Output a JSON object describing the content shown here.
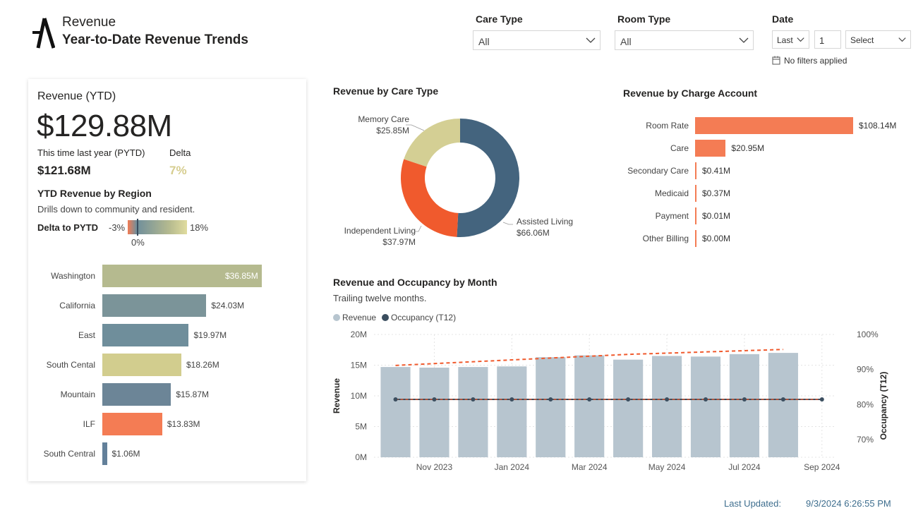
{
  "header": {
    "app_name": "Revenue",
    "page_title": "Year-to-Date Revenue Trends"
  },
  "filters": {
    "care_type": {
      "label": "Care Type",
      "value": "All"
    },
    "room_type": {
      "label": "Room Type",
      "value": "All"
    },
    "date": {
      "label": "Date",
      "period": "Last",
      "count": "1",
      "unit": "Select",
      "status": "No filters applied"
    }
  },
  "kpi": {
    "title": "Revenue (YTD)",
    "value": "$129.88M",
    "pytd_label": "This time last year (PYTD)",
    "pytd_value": "$121.68M",
    "delta_label": "Delta",
    "delta_value": "7%"
  },
  "region": {
    "title": "YTD Revenue by Region",
    "subtitle": "Drills down to community and resident.",
    "legend_title": "Delta to PYTD",
    "legend_min": "-3%",
    "legend_max": "18%",
    "legend_zero": "0%",
    "rows": [
      {
        "name": "Washington",
        "value": 36.85,
        "label": "$36.85M",
        "color": "#b5ba8f"
      },
      {
        "name": "California",
        "value": 24.03,
        "label": "$24.03M",
        "color": "#7b9499"
      },
      {
        "name": "East",
        "value": 19.97,
        "label": "$19.97M",
        "color": "#6f8e9b"
      },
      {
        "name": "South Cental",
        "value": 18.26,
        "label": "$18.26M",
        "color": "#d2cd8e"
      },
      {
        "name": "Mountain",
        "value": 15.87,
        "label": "$15.87M",
        "color": "#6c8597"
      },
      {
        "name": "ILF",
        "value": 13.83,
        "label": "$13.83M",
        "color": "#f47c54"
      },
      {
        "name": "South Central",
        "value": 1.06,
        "label": "$1.06M",
        "color": "#63809a"
      }
    ]
  },
  "care_type": {
    "title": "Revenue by Care Type",
    "slices": [
      {
        "name": "Assisted Living",
        "value": 66.06,
        "label": "$66.06M",
        "color": "#44647e"
      },
      {
        "name": "Independent Living",
        "value": 37.97,
        "label": "$37.97M",
        "color": "#f05a2d"
      },
      {
        "name": "Memory Care",
        "value": 25.85,
        "label": "$25.85M",
        "color": "#d4cf94"
      }
    ]
  },
  "charge_account": {
    "title": "Revenue by Charge Account",
    "rows": [
      {
        "name": "Room Rate",
        "value": 108.14,
        "label": "$108.14M"
      },
      {
        "name": "Care",
        "value": 20.95,
        "label": "$20.95M"
      },
      {
        "name": "Secondary Care",
        "value": 0.41,
        "label": "$0.41M"
      },
      {
        "name": "Medicaid",
        "value": 0.37,
        "label": "$0.37M"
      },
      {
        "name": "Payment",
        "value": 0.01,
        "label": "$0.01M"
      },
      {
        "name": "Other Billing",
        "value": 0.0,
        "label": "$0.00M"
      }
    ],
    "color": "#f47c54"
  },
  "chart_data": {
    "type": "bar",
    "title": "Revenue and Occupancy by Month",
    "subtitle": "Trailing twelve months.",
    "legend": [
      "Revenue",
      "Occupancy (T12)"
    ],
    "ylabel": "Revenue",
    "y2label": "Occupancy (T12)",
    "ylim": [
      0,
      20
    ],
    "y2lim": [
      65,
      100
    ],
    "yticks": [
      "0M",
      "5M",
      "10M",
      "15M",
      "20M"
    ],
    "y2ticks": [
      "70%",
      "80%",
      "90%",
      "100%"
    ],
    "xticks": [
      "Nov 2023",
      "Jan 2024",
      "Mar 2024",
      "May 2024",
      "Jul 2024",
      "Sep 2024"
    ],
    "months": [
      "Oct 2023",
      "Nov 2023",
      "Dec 2023",
      "Jan 2024",
      "Feb 2024",
      "Mar 2024",
      "Apr 2024",
      "May 2024",
      "Jun 2024",
      "Jul 2024",
      "Aug 2024",
      "Sep 2024"
    ],
    "series": [
      {
        "name": "Revenue",
        "values": [
          14.7,
          14.6,
          14.7,
          14.8,
          16.3,
          16.6,
          15.9,
          16.5,
          16.4,
          16.8,
          17.0,
          null
        ],
        "color": "#b7c5cf"
      },
      {
        "name": "Occupancy (T12)",
        "values": [
          81.5,
          81.5,
          81.5,
          81.5,
          81.5,
          81.5,
          81.5,
          81.5,
          81.5,
          81.5,
          81.5,
          81.5
        ],
        "color": "#3b4e5f"
      },
      {
        "name": "Revenue trend",
        "values": [
          14.5,
          14.8,
          15.1,
          15.4,
          15.7,
          16.0,
          16.3,
          16.5,
          16.7,
          16.9,
          17.1,
          null
        ],
        "color": "#f05a2d"
      }
    ]
  },
  "footer": {
    "updated_label": "Last Updated:",
    "updated_value": "9/3/2024 6:26:55 PM"
  }
}
